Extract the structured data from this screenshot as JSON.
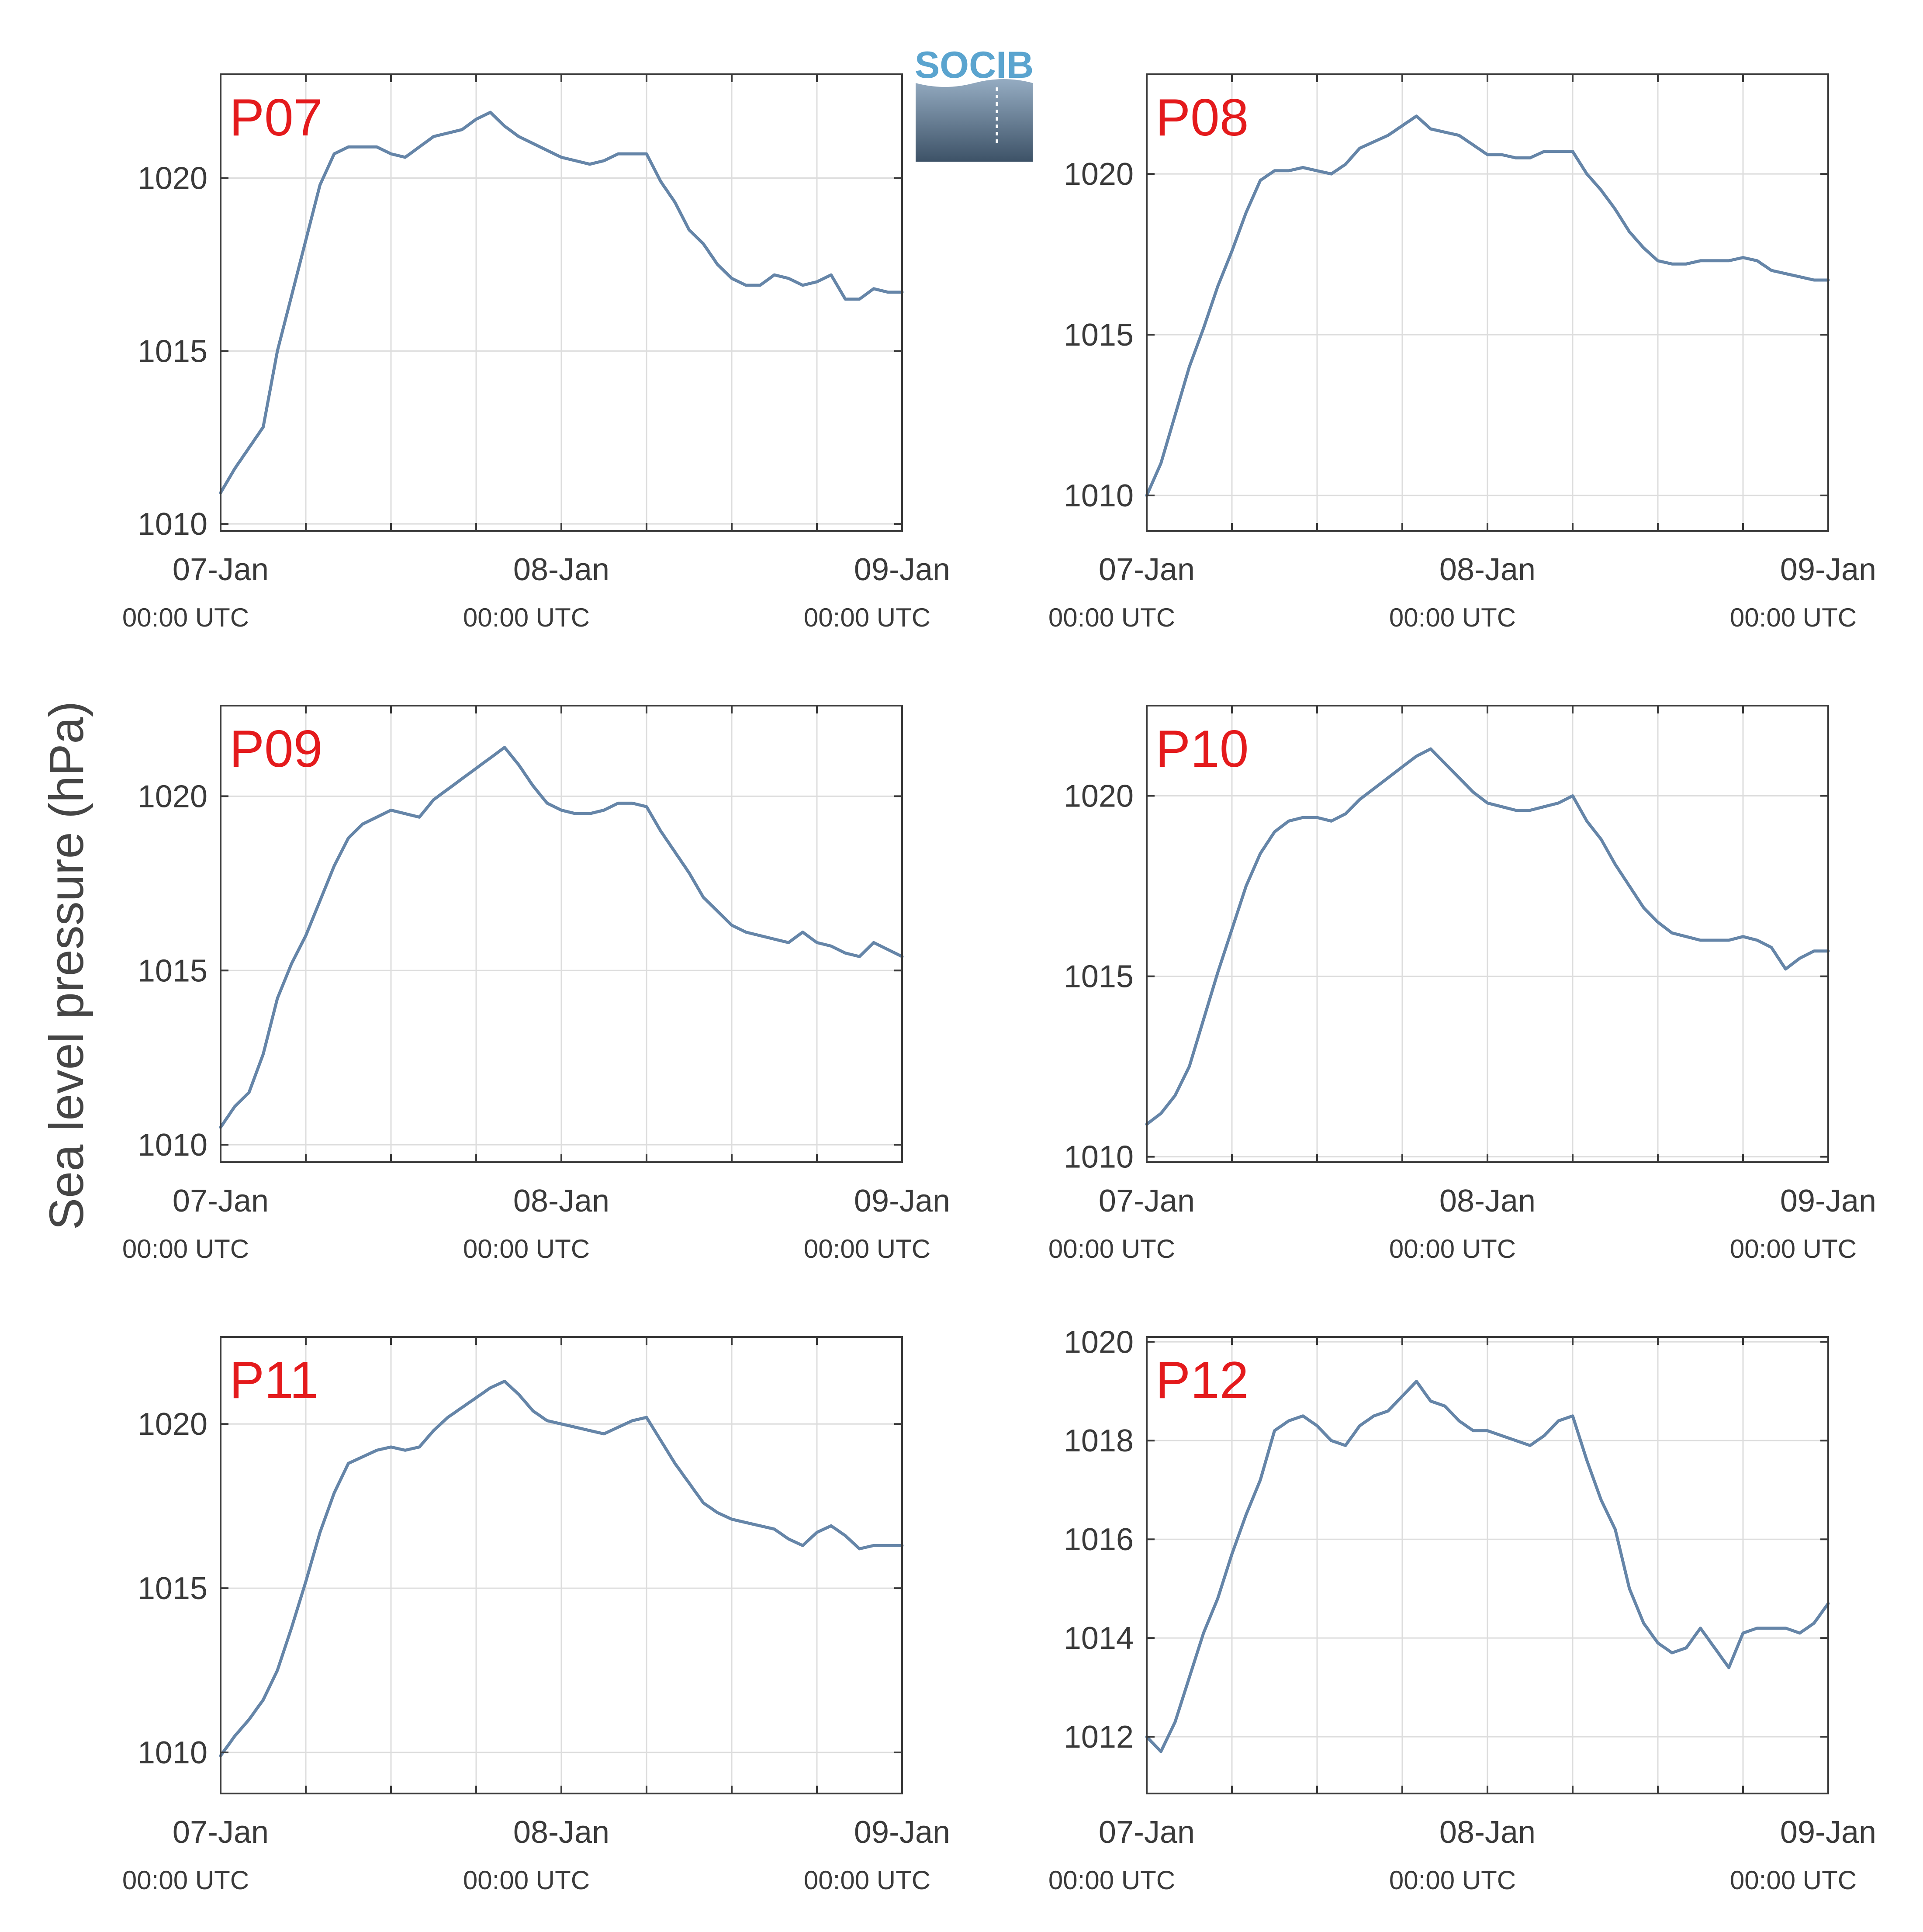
{
  "figure": {
    "ylabel": "Sea level pressure (hPa)",
    "logo_text": "SOCIB",
    "x_ticks": [
      {
        "date": "07-Jan",
        "time": "00:00 UTC",
        "hours": 0
      },
      {
        "date": "08-Jan",
        "time": "00:00 UTC",
        "hours": 24
      },
      {
        "date": "09-Jan",
        "time": "00:00 UTC",
        "hours": 48
      }
    ]
  },
  "colors": {
    "line": "#6585a8",
    "panel_label": "#e41a1c",
    "axis": "#3a3a3a",
    "grid": "#dddddd",
    "logo_text": "#5aa4cf",
    "logo_top": "#95acc2",
    "logo_bottom": "#3d5267"
  },
  "chart_data": [
    {
      "type": "line",
      "title": "P07",
      "xlabel": "",
      "ylabel": "Sea level pressure (hPa)",
      "x_unit": "hours since 07-Jan 00:00 UTC",
      "xlim": [
        0,
        48
      ],
      "ylim": [
        1009.8,
        1023
      ],
      "yticks": [
        1010,
        1015,
        1020
      ],
      "grid": true,
      "x": [
        0,
        1,
        2,
        3,
        4,
        5,
        6,
        7,
        8,
        9,
        10,
        11,
        12,
        13,
        14,
        15,
        16,
        17,
        18,
        19,
        20,
        21,
        22,
        23,
        24,
        25,
        26,
        27,
        28,
        29,
        30,
        31,
        32,
        33,
        34,
        35,
        36,
        37,
        38,
        39,
        40,
        41,
        42,
        43,
        44,
        45,
        46,
        47,
        48
      ],
      "values": [
        1010.9,
        1011.6,
        1012.2,
        1012.8,
        1015.0,
        1016.6,
        1018.2,
        1019.8,
        1020.7,
        1020.9,
        1020.9,
        1020.9,
        1020.7,
        1020.6,
        1020.9,
        1021.2,
        1021.3,
        1021.4,
        1021.7,
        1021.9,
        1021.5,
        1021.2,
        1021.0,
        1020.8,
        1020.6,
        1020.5,
        1020.4,
        1020.5,
        1020.7,
        1020.7,
        1020.7,
        1019.9,
        1019.3,
        1018.5,
        1018.1,
        1017.5,
        1017.1,
        1016.9,
        1016.9,
        1017.2,
        1017.1,
        1016.9,
        1017.0,
        1017.2,
        1016.5,
        1016.5,
        1016.8,
        1016.7,
        1016.7
      ]
    },
    {
      "type": "line",
      "title": "P08",
      "xlabel": "",
      "ylabel": "Sea level pressure (hPa)",
      "x_unit": "hours since 07-Jan 00:00 UTC",
      "xlim": [
        0,
        48
      ],
      "ylim": [
        1008.9,
        1023.1
      ],
      "yticks": [
        1010,
        1015,
        1020
      ],
      "grid": true,
      "x": [
        0,
        1,
        2,
        3,
        4,
        5,
        6,
        7,
        8,
        9,
        10,
        11,
        12,
        13,
        14,
        15,
        16,
        17,
        18,
        19,
        20,
        21,
        22,
        23,
        24,
        25,
        26,
        27,
        28,
        29,
        30,
        31,
        32,
        33,
        34,
        35,
        36,
        37,
        38,
        39,
        40,
        41,
        42,
        43,
        44,
        45,
        46,
        47,
        48
      ],
      "values": [
        1010.0,
        1011.0,
        1012.5,
        1014.0,
        1015.2,
        1016.5,
        1017.6,
        1018.8,
        1019.8,
        1020.1,
        1020.1,
        1020.2,
        1020.1,
        1020.0,
        1020.3,
        1020.8,
        1021.0,
        1021.2,
        1021.5,
        1021.8,
        1021.4,
        1021.3,
        1021.2,
        1020.9,
        1020.6,
        1020.6,
        1020.5,
        1020.5,
        1020.7,
        1020.7,
        1020.7,
        1020.0,
        1019.5,
        1018.9,
        1018.2,
        1017.7,
        1017.3,
        1017.2,
        1017.2,
        1017.3,
        1017.3,
        1017.3,
        1017.4,
        1017.3,
        1017.0,
        1016.9,
        1016.8,
        1016.7,
        1016.7
      ]
    },
    {
      "type": "line",
      "title": "P09",
      "xlabel": "",
      "ylabel": "Sea level pressure (hPa)",
      "x_unit": "hours since 07-Jan 00:00 UTC",
      "xlim": [
        0,
        48
      ],
      "ylim": [
        1009.5,
        1022.6
      ],
      "yticks": [
        1010,
        1015,
        1020
      ],
      "grid": true,
      "x": [
        0,
        1,
        2,
        3,
        4,
        5,
        6,
        7,
        8,
        9,
        10,
        11,
        12,
        13,
        14,
        15,
        16,
        17,
        18,
        19,
        20,
        21,
        22,
        23,
        24,
        25,
        26,
        27,
        28,
        29,
        30,
        31,
        32,
        33,
        34,
        35,
        36,
        37,
        38,
        39,
        40,
        41,
        42,
        43,
        44,
        45,
        46,
        47,
        48
      ],
      "values": [
        1010.5,
        1011.1,
        1011.5,
        1012.6,
        1014.2,
        1015.2,
        1016.0,
        1017.0,
        1018.0,
        1018.8,
        1019.2,
        1019.4,
        1019.6,
        1019.5,
        1019.4,
        1019.9,
        1020.2,
        1020.5,
        1020.8,
        1021.1,
        1021.4,
        1020.9,
        1020.3,
        1019.8,
        1019.6,
        1019.5,
        1019.5,
        1019.6,
        1019.8,
        1019.8,
        1019.7,
        1019.0,
        1018.4,
        1017.8,
        1017.1,
        1016.7,
        1016.3,
        1016.1,
        1016.0,
        1015.9,
        1015.8,
        1016.1,
        1015.8,
        1015.7,
        1015.5,
        1015.4,
        1015.8,
        1015.6,
        1015.4
      ]
    },
    {
      "type": "line",
      "title": "P10",
      "xlabel": "",
      "ylabel": "Sea level pressure (hPa)",
      "x_unit": "hours since 07-Jan 00:00 UTC",
      "xlim": [
        0,
        48
      ],
      "ylim": [
        1009.85,
        1022.5
      ],
      "yticks": [
        1010,
        1015,
        1020
      ],
      "grid": true,
      "x": [
        0,
        1,
        2,
        3,
        4,
        5,
        6,
        7,
        8,
        9,
        10,
        11,
        12,
        13,
        14,
        15,
        16,
        17,
        18,
        19,
        20,
        21,
        22,
        23,
        24,
        25,
        26,
        27,
        28,
        29,
        30,
        31,
        32,
        33,
        34,
        35,
        36,
        37,
        38,
        39,
        40,
        41,
        42,
        43,
        44,
        45,
        46,
        47,
        48
      ],
      "values": [
        1010.9,
        1011.2,
        1011.7,
        1012.5,
        1013.8,
        1015.1,
        1016.3,
        1017.5,
        1018.4,
        1019.0,
        1019.3,
        1019.4,
        1019.4,
        1019.3,
        1019.5,
        1019.9,
        1020.2,
        1020.5,
        1020.8,
        1021.1,
        1021.3,
        1020.9,
        1020.5,
        1020.1,
        1019.8,
        1019.7,
        1019.6,
        1019.6,
        1019.7,
        1019.8,
        1020.0,
        1019.3,
        1018.8,
        1018.1,
        1017.5,
        1016.9,
        1016.5,
        1016.2,
        1016.1,
        1016.0,
        1016.0,
        1016.0,
        1016.1,
        1016.0,
        1015.8,
        1015.2,
        1015.5,
        1015.7,
        1015.7
      ]
    },
    {
      "type": "line",
      "title": "P11",
      "xlabel": "",
      "ylabel": "Sea level pressure (hPa)",
      "x_unit": "hours since 07-Jan 00:00 UTC",
      "xlim": [
        0,
        48
      ],
      "ylim": [
        1008.75,
        1022.65
      ],
      "yticks": [
        1010,
        1015,
        1020
      ],
      "grid": true,
      "x": [
        0,
        1,
        2,
        3,
        4,
        5,
        6,
        7,
        8,
        9,
        10,
        11,
        12,
        13,
        14,
        15,
        16,
        17,
        18,
        19,
        20,
        21,
        22,
        23,
        24,
        25,
        26,
        27,
        28,
        29,
        30,
        31,
        32,
        33,
        34,
        35,
        36,
        37,
        38,
        39,
        40,
        41,
        42,
        43,
        44,
        45,
        46,
        47,
        48
      ],
      "values": [
        1009.9,
        1010.5,
        1011.0,
        1011.6,
        1012.5,
        1013.8,
        1015.2,
        1016.7,
        1017.9,
        1018.8,
        1019.0,
        1019.2,
        1019.3,
        1019.2,
        1019.3,
        1019.8,
        1020.2,
        1020.5,
        1020.8,
        1021.1,
        1021.3,
        1020.9,
        1020.4,
        1020.1,
        1020.0,
        1019.9,
        1019.8,
        1019.7,
        1019.9,
        1020.1,
        1020.2,
        1019.5,
        1018.8,
        1018.2,
        1017.6,
        1017.3,
        1017.1,
        1017.0,
        1016.9,
        1016.8,
        1016.5,
        1016.3,
        1016.7,
        1016.9,
        1016.6,
        1016.2,
        1016.3,
        1016.3,
        1016.3
      ]
    },
    {
      "type": "line",
      "title": "P12",
      "xlabel": "",
      "ylabel": "Sea level pressure (hPa)",
      "x_unit": "hours since 07-Jan 00:00 UTC",
      "xlim": [
        0,
        48
      ],
      "ylim": [
        1010.85,
        1020.1
      ],
      "yticks": [
        1012,
        1014,
        1016,
        1018,
        1020
      ],
      "grid": true,
      "x": [
        0,
        1,
        2,
        3,
        4,
        5,
        6,
        7,
        8,
        9,
        10,
        11,
        12,
        13,
        14,
        15,
        16,
        17,
        18,
        19,
        20,
        21,
        22,
        23,
        24,
        25,
        26,
        27,
        28,
        29,
        30,
        31,
        32,
        33,
        34,
        35,
        36,
        37,
        38,
        39,
        40,
        41,
        42,
        43,
        44,
        45,
        46,
        47,
        48
      ],
      "values": [
        1012.0,
        1011.7,
        1012.3,
        1013.2,
        1014.1,
        1014.8,
        1015.7,
        1016.5,
        1017.2,
        1018.2,
        1018.4,
        1018.5,
        1018.3,
        1018.0,
        1017.9,
        1018.3,
        1018.5,
        1018.6,
        1018.9,
        1019.2,
        1018.8,
        1018.7,
        1018.4,
        1018.2,
        1018.2,
        1018.1,
        1018.0,
        1017.9,
        1018.1,
        1018.4,
        1018.5,
        1017.6,
        1016.8,
        1016.2,
        1015.0,
        1014.3,
        1013.9,
        1013.7,
        1013.8,
        1014.2,
        1013.8,
        1013.4,
        1014.1,
        1014.2,
        1014.2,
        1014.2,
        1014.1,
        1014.3,
        1014.7
      ]
    }
  ]
}
